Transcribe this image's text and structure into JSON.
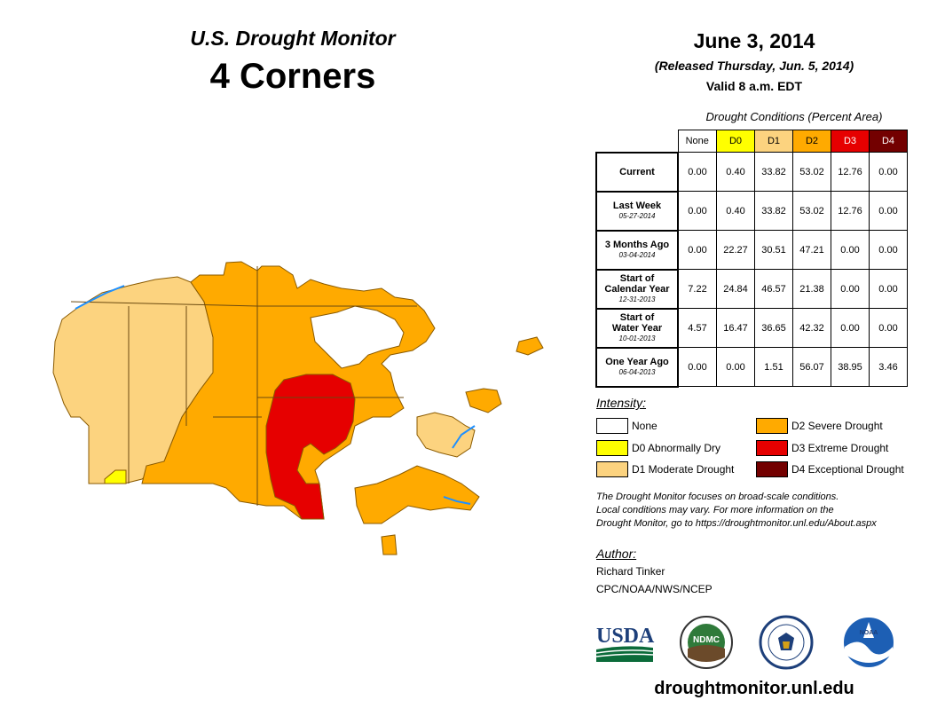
{
  "header": {
    "title_small": "U.S. Drought Monitor",
    "title_big": "4 Corners",
    "date": "June 3, 2014",
    "released": "(Released Thursday, Jun. 5, 2014)",
    "valid": "Valid 8 a.m. EDT"
  },
  "table": {
    "title": "Drought Conditions (Percent Area)",
    "columns": [
      {
        "label": "None",
        "color": "#ffffff",
        "text_color": "#000000"
      },
      {
        "label": "D0",
        "color": "#ffff00",
        "text_color": "#000000"
      },
      {
        "label": "D1",
        "color": "#fcd37f",
        "text_color": "#000000"
      },
      {
        "label": "D2",
        "color": "#ffaa00",
        "text_color": "#000000"
      },
      {
        "label": "D3",
        "color": "#e60000",
        "text_color": "#ffffff"
      },
      {
        "label": "D4",
        "color": "#730000",
        "text_color": "#ffffff"
      }
    ],
    "rows": [
      {
        "label": "Current",
        "label2": "",
        "sub": "",
        "values": [
          "0.00",
          "0.40",
          "33.82",
          "53.02",
          "12.76",
          "0.00"
        ]
      },
      {
        "label": "Last Week",
        "label2": "",
        "sub": "05-27-2014",
        "values": [
          "0.00",
          "0.40",
          "33.82",
          "53.02",
          "12.76",
          "0.00"
        ]
      },
      {
        "label": "3 Months Ago",
        "label2": "",
        "sub": "03-04-2014",
        "values": [
          "0.00",
          "22.27",
          "30.51",
          "47.21",
          "0.00",
          "0.00"
        ]
      },
      {
        "label": "Start of",
        "label2": "Calendar Year",
        "sub": "12-31-2013",
        "values": [
          "7.22",
          "24.84",
          "46.57",
          "21.38",
          "0.00",
          "0.00"
        ]
      },
      {
        "label": "Start of",
        "label2": "Water Year",
        "sub": "10-01-2013",
        "values": [
          "4.57",
          "16.47",
          "36.65",
          "42.32",
          "0.00",
          "0.00"
        ]
      },
      {
        "label": "One Year Ago",
        "label2": "",
        "sub": "06-04-2013",
        "values": [
          "0.00",
          "0.00",
          "1.51",
          "56.07",
          "38.95",
          "3.46"
        ]
      }
    ]
  },
  "legend": {
    "title": "Intensity:",
    "items": [
      {
        "label": "None",
        "color": "#ffffff"
      },
      {
        "label": "D0 Abnormally Dry",
        "color": "#ffff00"
      },
      {
        "label": "D1 Moderate Drought",
        "color": "#fcd37f"
      },
      {
        "label": "D2 Severe Drought",
        "color": "#ffaa00"
      },
      {
        "label": "D3 Extreme Drought",
        "color": "#e60000"
      },
      {
        "label": "D4 Exceptional Drought",
        "color": "#730000"
      }
    ]
  },
  "note": {
    "line1": "The Drought Monitor focuses on broad-scale conditions.",
    "line2": "Local conditions may vary. For more information on the",
    "line3": "Drought Monitor, go to https://droughtmonitor.unl.edu/About.aspx"
  },
  "author": {
    "title": "Author:",
    "name": "Richard Tinker",
    "org": "CPC/NOAA/NWS/NCEP"
  },
  "logos": {
    "usda": "USDA",
    "ndmc": "NDMC",
    "noaa": "NOAA"
  },
  "website": "droughtmonitor.unl.edu",
  "colors": {
    "none": "#ffffff",
    "d0": "#ffff00",
    "d1": "#fcd37f",
    "d2": "#ffaa00",
    "d3": "#e60000",
    "d4": "#730000",
    "water": "#1e90ff"
  }
}
